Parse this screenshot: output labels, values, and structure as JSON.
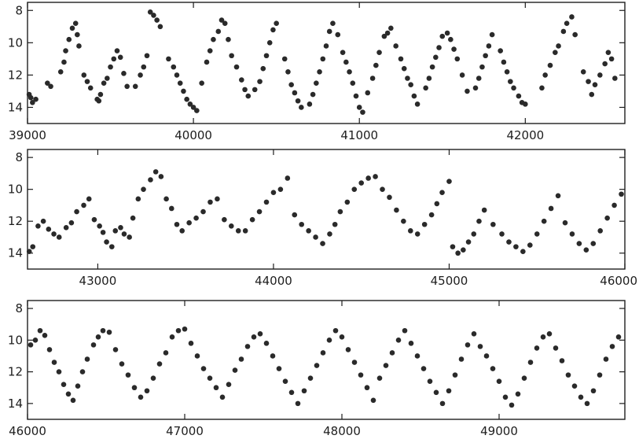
{
  "chart_data": [
    {
      "type": "scatter",
      "xlim": [
        39000,
        42600
      ],
      "ylim": [
        15,
        7.5
      ],
      "y_inverted": true,
      "xticks": [
        39000,
        40000,
        41000,
        42000
      ],
      "yticks": [
        8,
        10,
        12,
        14
      ],
      "x_tick_labels": [
        "39000",
        "40000",
        "41000",
        "42000"
      ],
      "y_tick_labels": [
        "8",
        "10",
        "12",
        "14"
      ],
      "grid": false,
      "series": [
        {
          "x": [
            39010,
            39020,
            39030,
            39050,
            39120,
            39140,
            39200,
            39220,
            39230,
            39250,
            39270,
            39290,
            39300,
            39310,
            39340,
            39360,
            39380,
            39420,
            39430,
            39440,
            39460,
            39480,
            39500,
            39520,
            39540,
            39560,
            39580,
            39600,
            39650,
            39680,
            39700,
            39720,
            39740,
            39760,
            39780,
            39800,
            39850,
            39880,
            39900,
            39920,
            39940,
            39960,
            39980,
            40000,
            40020,
            40050,
            40080,
            40100,
            40120,
            40150,
            40170,
            40190,
            40210,
            40230,
            40260,
            40290,
            40310,
            40330,
            40370,
            40400,
            40420,
            40440,
            40460,
            40480,
            40500,
            40550,
            40570,
            40590,
            40610,
            40630,
            40650,
            40700,
            40720,
            40740,
            40760,
            40780,
            40800,
            40820,
            40840,
            40870,
            40900,
            40920,
            40940,
            40960,
            40980,
            41000,
            41020,
            41050,
            41080,
            41100,
            41120,
            41150,
            41170,
            41190,
            41220,
            41250,
            41270,
            41290,
            41310,
            41330,
            41350,
            41400,
            41420,
            41440,
            41460,
            41480,
            41500,
            41530,
            41550,
            41570,
            41590,
            41620,
            41650,
            41700,
            41720,
            41740,
            41760,
            41780,
            41800,
            41850,
            41870,
            41890,
            41910,
            41930,
            41960,
            41980,
            42000,
            42100,
            42120,
            42150,
            42180,
            42200,
            42230,
            42250,
            42280,
            42300,
            42350,
            42380,
            42400,
            42420,
            42450,
            42480,
            42500,
            42520,
            42540
          ],
          "y": [
            13.2,
            13.4,
            13.7,
            13.5,
            12.5,
            12.7,
            11.8,
            11.2,
            10.5,
            9.8,
            9.1,
            8.8,
            9.5,
            10.2,
            12.0,
            12.4,
            12.8,
            13.5,
            13.6,
            13.2,
            12.5,
            12.2,
            11.5,
            11.0,
            10.5,
            10.9,
            11.9,
            12.7,
            12.7,
            12.0,
            11.5,
            10.8,
            8.1,
            8.3,
            8.6,
            9.0,
            11.0,
            11.5,
            12.0,
            12.5,
            13.0,
            13.5,
            13.8,
            14.0,
            14.2,
            12.5,
            11.2,
            10.5,
            9.8,
            9.3,
            8.6,
            8.8,
            9.8,
            10.8,
            11.5,
            12.3,
            12.9,
            13.3,
            12.9,
            12.4,
            11.6,
            10.8,
            10.0,
            9.2,
            8.8,
            11.0,
            11.8,
            12.6,
            13.1,
            13.6,
            14.0,
            13.8,
            13.2,
            12.5,
            11.8,
            11.0,
            10.2,
            9.3,
            8.8,
            9.5,
            10.6,
            11.2,
            11.8,
            12.5,
            13.3,
            14.0,
            14.3,
            13.1,
            12.2,
            11.4,
            10.6,
            9.6,
            9.4,
            9.1,
            10.2,
            11.0,
            11.6,
            12.2,
            12.6,
            13.3,
            13.8,
            12.8,
            12.2,
            11.5,
            10.9,
            10.3,
            9.6,
            9.4,
            9.8,
            10.4,
            11.0,
            12.0,
            13.0,
            12.8,
            12.2,
            11.5,
            10.8,
            10.2,
            9.5,
            10.5,
            11.2,
            11.8,
            12.4,
            12.8,
            13.3,
            13.7,
            13.8,
            12.8,
            12.0,
            11.4,
            10.6,
            10.2,
            9.3,
            8.8,
            8.4,
            9.5,
            11.8,
            12.4,
            13.2,
            12.6,
            12.0,
            11.3,
            10.6,
            11.0,
            12.2
          ]
        }
      ]
    },
    {
      "type": "scatter",
      "xlim": [
        42600,
        46000
      ],
      "ylim": [
        15,
        7.5
      ],
      "y_inverted": true,
      "xticks": [
        43000,
        44000,
        45000,
        46000
      ],
      "yticks": [
        8,
        10,
        12,
        14
      ],
      "x_tick_labels": [
        "43000",
        "44000",
        "45000",
        "46000"
      ],
      "y_tick_labels": [
        "8",
        "10",
        "12",
        "14"
      ],
      "grid": false,
      "series": [
        {
          "x": [
            42610,
            42630,
            42660,
            42690,
            42720,
            42750,
            42780,
            42820,
            42850,
            42880,
            42920,
            42950,
            42980,
            43010,
            43030,
            43050,
            43080,
            43100,
            43130,
            43150,
            43180,
            43200,
            43230,
            43260,
            43300,
            43330,
            43360,
            43390,
            43420,
            43450,
            43480,
            43520,
            43560,
            43600,
            43640,
            43680,
            43720,
            43760,
            43800,
            43840,
            43880,
            43920,
            43960,
            44000,
            44040,
            44080,
            44120,
            44160,
            44200,
            44240,
            44280,
            44320,
            44350,
            44380,
            44420,
            44460,
            44500,
            44540,
            44580,
            44620,
            44660,
            44700,
            44740,
            44780,
            44820,
            44860,
            44900,
            44930,
            44960,
            45000,
            45020,
            45050,
            45080,
            45110,
            45140,
            45170,
            45200,
            45250,
            45300,
            45340,
            45380,
            45420,
            45460,
            45500,
            45540,
            45580,
            45620,
            45660,
            45700,
            45740,
            45780,
            45820,
            45860,
            45900,
            45940,
            45980
          ],
          "y": [
            13.9,
            13.6,
            12.3,
            12.0,
            12.5,
            12.8,
            13.0,
            12.4,
            12.1,
            11.4,
            11.0,
            10.6,
            11.9,
            12.3,
            12.7,
            13.3,
            13.6,
            12.6,
            12.4,
            12.8,
            13.0,
            11.8,
            10.6,
            10.0,
            9.4,
            8.9,
            9.2,
            10.6,
            11.2,
            12.2,
            12.6,
            12.1,
            11.8,
            11.4,
            10.8,
            10.6,
            11.9,
            12.3,
            12.6,
            12.6,
            11.9,
            11.4,
            10.8,
            10.2,
            10.0,
            9.3,
            11.6,
            12.2,
            12.6,
            13.0,
            13.4,
            12.8,
            12.2,
            11.4,
            10.8,
            10.0,
            9.6,
            9.3,
            9.2,
            10.0,
            10.5,
            11.3,
            12.0,
            12.6,
            12.8,
            12.2,
            11.6,
            10.9,
            10.2,
            9.5,
            13.6,
            14.0,
            13.8,
            13.3,
            12.8,
            12.0,
            11.3,
            12.2,
            12.8,
            13.3,
            13.6,
            13.9,
            13.5,
            12.8,
            12.0,
            11.2,
            10.4,
            12.1,
            12.8,
            13.4,
            13.8,
            13.4,
            12.6,
            11.8,
            11.0,
            10.3
          ]
        }
      ]
    },
    {
      "type": "scatter",
      "xlim": [
        46000,
        49800
      ],
      "ylim": [
        15,
        7.5
      ],
      "y_inverted": true,
      "xticks": [
        46000,
        47000,
        48000,
        49000
      ],
      "yticks": [
        8,
        10,
        12,
        14
      ],
      "x_tick_labels": [
        "46000",
        "47000",
        "48000",
        "49000"
      ],
      "y_tick_labels": [
        "8",
        "10",
        "12",
        "14"
      ],
      "grid": false,
      "series": [
        {
          "x": [
            46020,
            46050,
            46080,
            46110,
            46140,
            46170,
            46200,
            46230,
            46260,
            46290,
            46320,
            46350,
            46380,
            46420,
            46450,
            46480,
            46520,
            46560,
            46600,
            46640,
            46680,
            46720,
            46760,
            46800,
            46840,
            46880,
            46920,
            46960,
            47000,
            47040,
            47080,
            47120,
            47160,
            47200,
            47240,
            47280,
            47320,
            47360,
            47400,
            47440,
            47480,
            47520,
            47560,
            47600,
            47640,
            47680,
            47720,
            47760,
            47800,
            47840,
            47880,
            47920,
            47960,
            48000,
            48040,
            48080,
            48120,
            48160,
            48200,
            48240,
            48280,
            48320,
            48360,
            48400,
            48440,
            48480,
            48520,
            48560,
            48600,
            48640,
            48680,
            48720,
            48760,
            48800,
            48840,
            48880,
            48920,
            48960,
            49000,
            49040,
            49080,
            49120,
            49160,
            49200,
            49240,
            49280,
            49320,
            49360,
            49400,
            49440,
            49480,
            49520,
            49560,
            49600,
            49640,
            49680,
            49720,
            49760
          ],
          "y": [
            10.3,
            10.0,
            9.4,
            9.7,
            10.6,
            11.4,
            12.0,
            12.8,
            13.4,
            13.8,
            12.9,
            12.0,
            11.2,
            10.3,
            9.8,
            9.4,
            9.5,
            10.6,
            11.5,
            12.2,
            13.0,
            13.6,
            13.2,
            12.4,
            11.5,
            10.8,
            9.8,
            9.4,
            9.3,
            10.2,
            11.0,
            11.8,
            12.4,
            13.0,
            13.6,
            12.8,
            11.9,
            11.2,
            10.4,
            9.8,
            9.6,
            10.2,
            11.0,
            11.8,
            12.6,
            13.3,
            14.0,
            13.2,
            12.4,
            11.6,
            10.8,
            10.0,
            9.4,
            9.8,
            10.6,
            11.4,
            12.2,
            13.0,
            13.8,
            12.4,
            11.6,
            10.8,
            10.0,
            9.4,
            10.2,
            11.0,
            11.8,
            12.6,
            13.3,
            14.0,
            13.2,
            12.2,
            11.2,
            10.3,
            9.6,
            10.4,
            11.0,
            11.8,
            12.6,
            13.6,
            14.1,
            13.4,
            12.4,
            11.4,
            10.5,
            9.8,
            9.6,
            10.5,
            11.3,
            12.2,
            12.9,
            13.6,
            14.0,
            13.2,
            12.2,
            11.2,
            10.4,
            9.8
          ]
        }
      ]
    }
  ]
}
